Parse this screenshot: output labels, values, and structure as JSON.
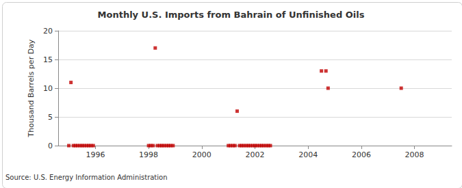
{
  "chart_data": {
    "type": "scatter",
    "title": "Monthly U.S. Imports from Bahrain of Unfinished Oils",
    "y_label": "Thousand Barrels per Day",
    "source": "Source: U.S. Energy Information Administration",
    "x": [
      1995.0,
      1995.08,
      1995.17,
      1995.25,
      1995.33,
      1995.42,
      1995.5,
      1995.58,
      1995.67,
      1995.75,
      1995.83,
      1995.92,
      1998.0,
      1998.08,
      1998.17,
      1998.25,
      1998.33,
      1998.42,
      1998.5,
      1998.58,
      1998.67,
      1998.75,
      1998.83,
      1998.92,
      2001.0,
      2001.08,
      2001.17,
      2001.25,
      2001.33,
      2001.42,
      2001.5,
      2001.58,
      2001.67,
      2001.75,
      2001.83,
      2001.92,
      2002.0,
      2002.08,
      2002.17,
      2002.25,
      2002.33,
      2002.42,
      2002.5,
      2002.58,
      2004.5,
      2004.67,
      2004.75,
      2007.5
    ],
    "values": [
      0,
      11,
      0,
      0,
      0,
      0,
      0,
      0,
      0,
      0,
      0,
      0,
      0,
      0,
      0,
      17,
      0,
      0,
      0,
      0,
      0,
      0,
      0,
      0,
      0,
      0,
      0,
      0,
      6,
      0,
      0,
      0,
      0,
      0,
      0,
      0,
      0,
      0,
      0,
      0,
      0,
      0,
      0,
      0,
      13,
      13,
      10,
      10
    ],
    "color": "#c00000",
    "marker": "square",
    "xlim": [
      1994.6,
      2009.4
    ],
    "xticks": [
      1996,
      1998,
      2000,
      2002,
      2004,
      2006,
      2008
    ],
    "ylim": [
      0,
      20
    ],
    "yticks": [
      0,
      5,
      10,
      15,
      20
    ],
    "grid": true
  }
}
